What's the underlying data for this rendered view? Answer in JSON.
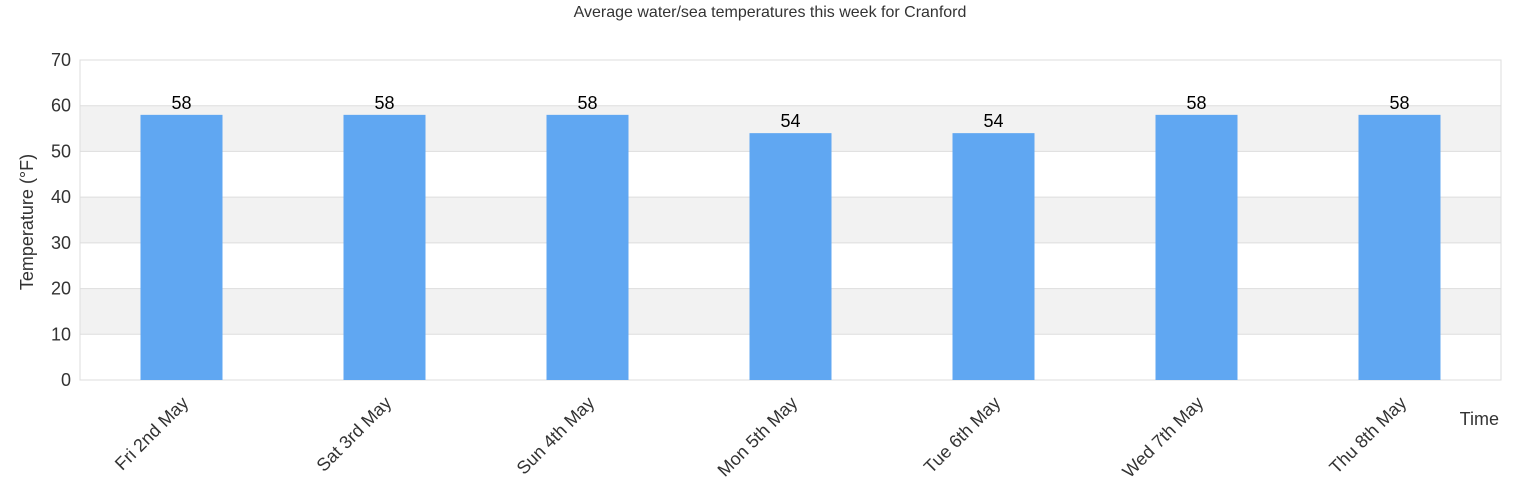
{
  "chart_data": {
    "type": "bar",
    "title": "Average water/sea temperatures this week for Cranford",
    "xlabel": "Time",
    "ylabel": "Temperature (°F)",
    "categories": [
      "Fri 2nd May",
      "Sat 3rd May",
      "Sun 4th May",
      "Mon 5th May",
      "Tue 6th May",
      "Wed 7th May",
      "Thu 8th May"
    ],
    "values": [
      58,
      58,
      58,
      54,
      54,
      58,
      58
    ],
    "data_labels": [
      "58",
      "58",
      "58",
      "54",
      "54",
      "58",
      "58"
    ],
    "ylim": [
      0,
      70
    ],
    "yticks": [
      0,
      10,
      20,
      30,
      40,
      50,
      60,
      70
    ],
    "ytick_labels": [
      "0",
      "10",
      "20",
      "30",
      "40",
      "50",
      "60",
      "70"
    ],
    "grid": true,
    "legend": "none",
    "bar_color": "#60a7f2",
    "band_color": "#f2f2f2",
    "grid_color": "#dddddd"
  }
}
